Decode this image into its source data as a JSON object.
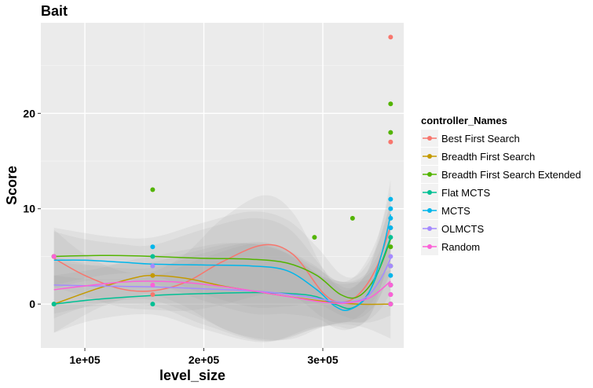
{
  "chart_data": {
    "type": "scatter",
    "title": "Bait",
    "xlabel": "level_size",
    "ylabel": "Score",
    "xlim": [
      63000,
      368000
    ],
    "ylim": [
      -4.6,
      29.5
    ],
    "x_ticks": [
      {
        "value": 100000,
        "label": "1e+05"
      },
      {
        "value": 200000,
        "label": "2e+05"
      },
      {
        "value": 300000,
        "label": "3e+05"
      }
    ],
    "y_ticks": [
      {
        "value": 0,
        "label": "0"
      },
      {
        "value": 10,
        "label": "10"
      },
      {
        "value": 20,
        "label": "20"
      }
    ],
    "grid": true,
    "legend": {
      "title": "controller_Names",
      "position": "right"
    },
    "series": [
      {
        "name": "Best First Search",
        "color": "#F8766D",
        "points": [
          [
            74000,
            5
          ],
          [
            157000,
            1
          ],
          [
            357000,
            28
          ],
          [
            357000,
            17
          ],
          [
            357000,
            8
          ],
          [
            357000,
            2
          ],
          [
            357000,
            0
          ]
        ],
        "smooth": [
          [
            74000,
            4.8
          ],
          [
            100000,
            3.0
          ],
          [
            130000,
            1.6
          ],
          [
            157000,
            1.4
          ],
          [
            185000,
            2.3
          ],
          [
            215000,
            4.4
          ],
          [
            250000,
            6.2
          ],
          [
            275000,
            5.2
          ],
          [
            300000,
            1.2
          ],
          [
            315000,
            0.2
          ],
          [
            330000,
            1.0
          ],
          [
            345000,
            3.8
          ],
          [
            357000,
            8.2
          ]
        ]
      },
      {
        "name": "Breadth First Search",
        "color": "#C49A00",
        "points": [
          [
            74000,
            0
          ],
          [
            157000,
            3
          ],
          [
            357000,
            2
          ],
          [
            357000,
            1
          ],
          [
            357000,
            0
          ]
        ],
        "smooth": [
          [
            74000,
            0.0
          ],
          [
            110000,
            1.6
          ],
          [
            140000,
            2.7
          ],
          [
            157000,
            3.0
          ],
          [
            185000,
            2.7
          ],
          [
            220000,
            1.8
          ],
          [
            260000,
            1.0
          ],
          [
            300000,
            0.3
          ],
          [
            330000,
            0.0
          ],
          [
            357000,
            0.0
          ]
        ]
      },
      {
        "name": "Breadth First Search Extended",
        "color": "#53B400",
        "points": [
          [
            74000,
            5
          ],
          [
            157000,
            12
          ],
          [
            293000,
            7
          ],
          [
            325000,
            9
          ],
          [
            357000,
            21
          ],
          [
            357000,
            18
          ],
          [
            357000,
            6
          ],
          [
            357000,
            4
          ],
          [
            357000,
            0
          ]
        ],
        "smooth": [
          [
            74000,
            5.0
          ],
          [
            120000,
            5.1
          ],
          [
            157000,
            5.0
          ],
          [
            200000,
            4.8
          ],
          [
            240000,
            4.7
          ],
          [
            270000,
            4.3
          ],
          [
            295000,
            3.0
          ],
          [
            315000,
            1.0
          ],
          [
            330000,
            0.8
          ],
          [
            345000,
            3.0
          ],
          [
            357000,
            6.8
          ]
        ]
      },
      {
        "name": "Flat MCTS",
        "color": "#00C094",
        "points": [
          [
            74000,
            0
          ],
          [
            157000,
            5
          ],
          [
            157000,
            0
          ],
          [
            357000,
            7
          ],
          [
            357000,
            2
          ],
          [
            357000,
            0
          ]
        ],
        "smooth": [
          [
            74000,
            0.0
          ],
          [
            110000,
            0.5
          ],
          [
            157000,
            0.9
          ],
          [
            200000,
            1.1
          ],
          [
            250000,
            1.2
          ],
          [
            290000,
            0.9
          ],
          [
            310000,
            0.0
          ],
          [
            325000,
            -0.4
          ],
          [
            340000,
            1.5
          ],
          [
            357000,
            7.0
          ]
        ]
      },
      {
        "name": "MCTS",
        "color": "#00B6EB",
        "points": [
          [
            157000,
            6
          ],
          [
            357000,
            11
          ],
          [
            357000,
            10
          ],
          [
            357000,
            9
          ],
          [
            357000,
            8
          ],
          [
            357000,
            3
          ]
        ],
        "smooth": [
          [
            74000,
            4.6
          ],
          [
            100000,
            4.6
          ],
          [
            130000,
            4.4
          ],
          [
            157000,
            4.2
          ],
          [
            200000,
            4.1
          ],
          [
            240000,
            4.0
          ],
          [
            270000,
            3.5
          ],
          [
            295000,
            1.5
          ],
          [
            310000,
            -0.2
          ],
          [
            322000,
            -0.6
          ],
          [
            338000,
            1.0
          ],
          [
            350000,
            5.5
          ],
          [
            357000,
            9.4
          ]
        ]
      },
      {
        "name": "OLMCTS",
        "color": "#A58AFF",
        "points": [
          [
            157000,
            4
          ],
          [
            357000,
            5
          ],
          [
            357000,
            4
          ],
          [
            357000,
            2
          ],
          [
            357000,
            1
          ]
        ],
        "smooth": [
          [
            74000,
            2.0
          ],
          [
            110000,
            1.9
          ],
          [
            157000,
            1.8
          ],
          [
            200000,
            1.6
          ],
          [
            250000,
            1.3
          ],
          [
            290000,
            0.7
          ],
          [
            315000,
            0.2
          ],
          [
            335000,
            0.6
          ],
          [
            348000,
            2.5
          ],
          [
            357000,
            4.8
          ]
        ]
      },
      {
        "name": "Random",
        "color": "#FB61D7",
        "points": [
          [
            74000,
            5
          ],
          [
            157000,
            2
          ],
          [
            357000,
            2
          ],
          [
            357000,
            1
          ],
          [
            357000,
            0
          ]
        ],
        "smooth": [
          [
            74000,
            1.5
          ],
          [
            100000,
            1.9
          ],
          [
            130000,
            2.3
          ],
          [
            157000,
            2.4
          ],
          [
            190000,
            2.2
          ],
          [
            230000,
            1.6
          ],
          [
            270000,
            0.8
          ],
          [
            300000,
            0.2
          ],
          [
            320000,
            0.1
          ],
          [
            340000,
            0.7
          ],
          [
            357000,
            2.4
          ]
        ]
      }
    ],
    "ribbon_width": [
      [
        74000,
        3.0
      ],
      [
        100000,
        2.2
      ],
      [
        130000,
        1.9
      ],
      [
        157000,
        2.0
      ],
      [
        185000,
        3.0
      ],
      [
        215000,
        4.5
      ],
      [
        250000,
        5.2
      ],
      [
        280000,
        4.2
      ],
      [
        300000,
        2.6
      ],
      [
        320000,
        2.0
      ],
      [
        340000,
        2.6
      ],
      [
        357000,
        3.6
      ]
    ]
  }
}
